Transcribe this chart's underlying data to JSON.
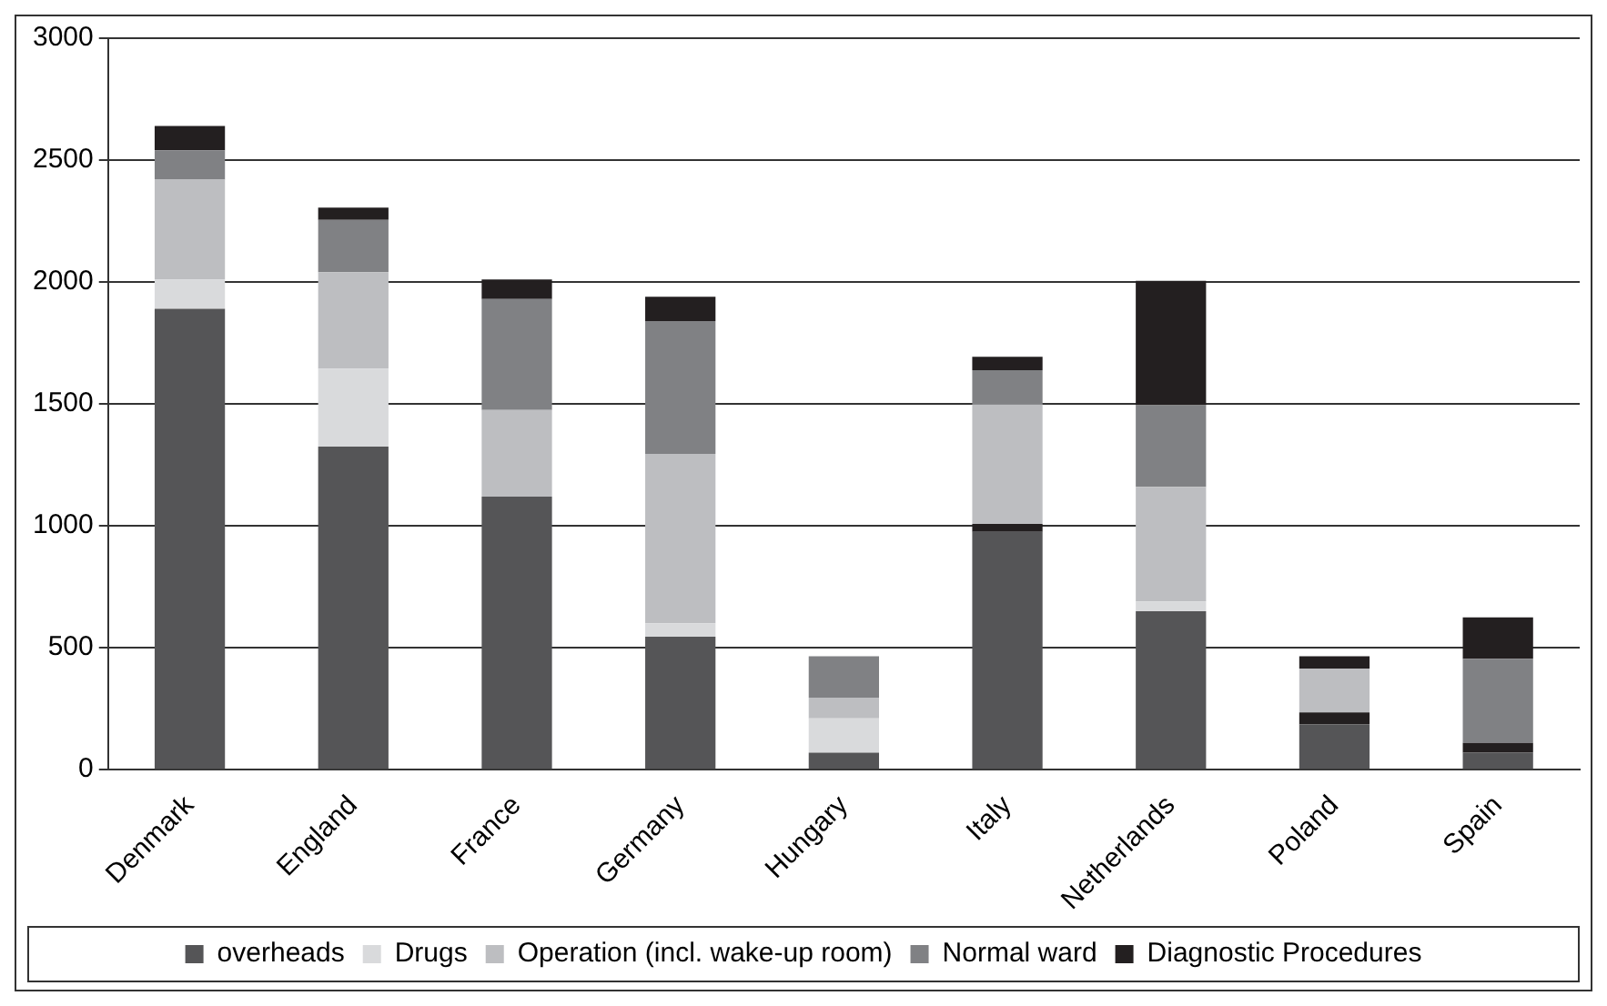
{
  "chart_data": {
    "type": "bar",
    "stacked": true,
    "categories": [
      "Denmark",
      "England",
      "France",
      "Germany",
      "Hungary",
      "Italy",
      "Netherlands",
      "Poland",
      "Spain"
    ],
    "series": [
      {
        "name": "overheads",
        "color": "#555557",
        "values": [
          1890,
          1325,
          1120,
          545,
          70,
          975,
          650,
          185,
          70
        ]
      },
      {
        "color": "#231f20",
        "values": [
          0,
          0,
          0,
          0,
          0,
          33,
          0,
          50,
          40
        ]
      },
      {
        "name": "Drugs",
        "color": "#d9dadc",
        "values": [
          120,
          320,
          0,
          55,
          140,
          0,
          40,
          0,
          0
        ]
      },
      {
        "name": "Operation (incl. wake-up room)",
        "color": "#bdbec1",
        "values": [
          410,
          395,
          355,
          695,
          85,
          490,
          470,
          180,
          0
        ]
      },
      {
        "name": "Normal ward",
        "color": "#808184",
        "values": [
          120,
          215,
          455,
          545,
          170,
          140,
          335,
          0,
          345
        ]
      },
      {
        "name": "Diagnostic Procedures",
        "color": "#231f20",
        "values": [
          100,
          50,
          80,
          100,
          0,
          55,
          510,
          50,
          170
        ]
      }
    ],
    "ylim": [
      0,
      3000
    ],
    "yticks": [
      0,
      500,
      1000,
      1500,
      2000,
      2500,
      3000
    ],
    "grid": "y",
    "legend": "bottom"
  }
}
